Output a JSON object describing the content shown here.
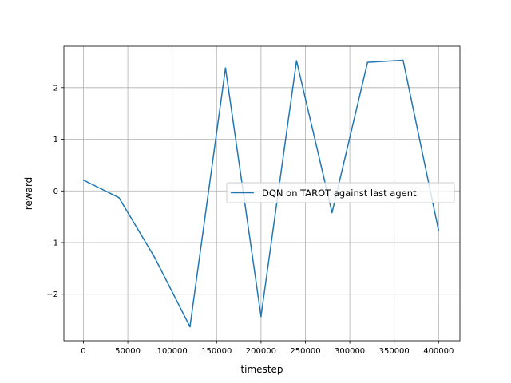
{
  "chart_data": {
    "type": "line",
    "xlabel": "timestep",
    "ylabel": "reward",
    "grid": true,
    "legend_position": "center-right",
    "xlim": [
      -22000,
      424000
    ],
    "ylim": [
      -2.9,
      2.8
    ],
    "x_ticks": [
      0,
      50000,
      100000,
      150000,
      200000,
      250000,
      300000,
      350000,
      400000
    ],
    "x_tick_labels": [
      "0",
      "50000",
      "100000",
      "150000",
      "200000",
      "250000",
      "300000",
      "350000",
      "400000"
    ],
    "y_ticks": [
      -2,
      -1,
      0,
      1,
      2
    ],
    "y_tick_labels": [
      "−2",
      "−1",
      "0",
      "1",
      "2"
    ],
    "series": [
      {
        "name": "DQN on TAROT against last agent",
        "color": "#1f77b4",
        "x": [
          0,
          40000,
          80000,
          120000,
          160000,
          200000,
          240000,
          280000,
          320000,
          360000,
          400000
        ],
        "y": [
          0.21,
          -0.13,
          -1.28,
          -2.63,
          2.38,
          -2.43,
          2.52,
          -0.42,
          2.49,
          2.53,
          -0.77
        ]
      }
    ]
  }
}
